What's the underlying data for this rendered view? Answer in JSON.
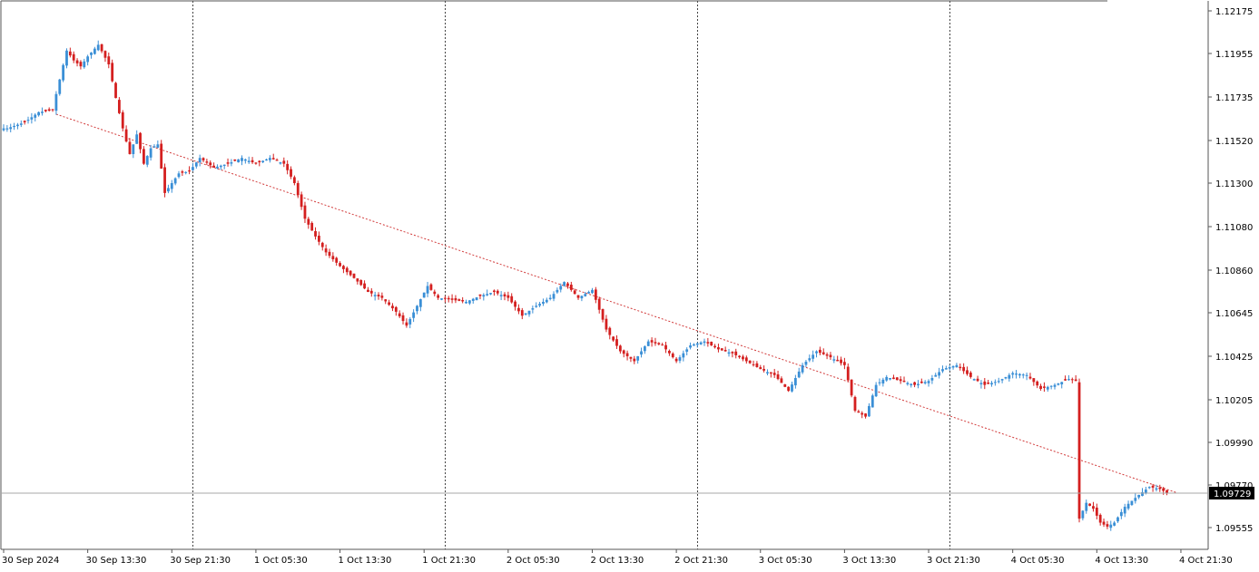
{
  "chart_data": {
    "type": "candlestick",
    "y_axis": {
      "ticks": [
        1.12175,
        1.11955,
        1.11735,
        1.1152,
        1.113,
        1.1108,
        1.1086,
        1.10645,
        1.10425,
        1.10205,
        1.0999,
        1.0977,
        1.09555
      ],
      "tick_labels": [
        "1.12175",
        "1.11955",
        "1.11735",
        "1.11520",
        "1.11300",
        "1.11080",
        "1.10860",
        "1.10645",
        "1.10425",
        "1.10205",
        "1.09990",
        "1.09770",
        "1.09555"
      ],
      "range": [
        1.0951,
        1.1222
      ]
    },
    "x_axis": {
      "labels": [
        "30 Sep 2024",
        "30 Sep 13:30",
        "30 Sep 21:30",
        "1 Oct 05:30",
        "1 Oct 13:30",
        "1 Oct 21:30",
        "2 Oct 05:30",
        "2 Oct 13:30",
        "2 Oct 21:30",
        "3 Oct 05:30",
        "3 Oct 13:30",
        "3 Oct 21:30",
        "4 Oct 05:30",
        "4 Oct 13:30",
        "4 Oct 21:30"
      ],
      "bar_index": [
        0,
        24,
        48,
        72,
        96,
        120,
        144,
        168,
        192,
        216,
        240,
        264,
        288,
        312,
        336
      ],
      "period_separators_at_bar": [
        54,
        126,
        198,
        270
      ]
    },
    "current_price": {
      "value": 1.09729,
      "label": "1.09729"
    },
    "trendline": {
      "from_bar": 15,
      "from_price": 1.1165,
      "to_bar": 335,
      "to_price": 1.0973
    },
    "colors": {
      "bull": "#3a8fd6",
      "bear": "#d41f1f",
      "grid": "#444444",
      "price_line": "#a7a7a7",
      "trendline": "#d23c3c"
    },
    "grid": true,
    "anchors": [
      {
        "bar": 1,
        "close": 1.1158
      },
      {
        "bar": 6,
        "close": 1.1161
      },
      {
        "bar": 10,
        "close": 1.1166
      },
      {
        "bar": 14,
        "close": 1.1167
      },
      {
        "bar": 15,
        "close": 1.1175
      },
      {
        "bar": 18,
        "close": 1.1197
      },
      {
        "bar": 20,
        "close": 1.1192
      },
      {
        "bar": 22,
        "close": 1.1189
      },
      {
        "bar": 24,
        "close": 1.1194
      },
      {
        "bar": 27,
        "close": 1.12
      },
      {
        "bar": 30,
        "close": 1.119
      },
      {
        "bar": 32,
        "close": 1.1173
      },
      {
        "bar": 34,
        "close": 1.1158
      },
      {
        "bar": 36,
        "close": 1.1145
      },
      {
        "bar": 38,
        "close": 1.1155
      },
      {
        "bar": 40,
        "close": 1.114
      },
      {
        "bar": 42,
        "close": 1.1148
      },
      {
        "bar": 44,
        "close": 1.115
      },
      {
        "bar": 46,
        "close": 1.1125
      },
      {
        "bar": 48,
        "close": 1.113
      },
      {
        "bar": 50,
        "close": 1.1135
      },
      {
        "bar": 53,
        "close": 1.1136
      },
      {
        "bar": 56,
        "close": 1.1143
      },
      {
        "bar": 60,
        "close": 1.1138
      },
      {
        "bar": 64,
        "close": 1.114
      },
      {
        "bar": 68,
        "close": 1.1143
      },
      {
        "bar": 72,
        "close": 1.114
      },
      {
        "bar": 76,
        "close": 1.1143
      },
      {
        "bar": 80,
        "close": 1.114
      },
      {
        "bar": 83,
        "close": 1.113
      },
      {
        "bar": 86,
        "close": 1.1112
      },
      {
        "bar": 89,
        "close": 1.1103
      },
      {
        "bar": 92,
        "close": 1.1095
      },
      {
        "bar": 96,
        "close": 1.1088
      },
      {
        "bar": 100,
        "close": 1.1082
      },
      {
        "bar": 104,
        "close": 1.1075
      },
      {
        "bar": 108,
        "close": 1.1072
      },
      {
        "bar": 112,
        "close": 1.1065
      },
      {
        "bar": 115,
        "close": 1.1058
      },
      {
        "bar": 118,
        "close": 1.1068
      },
      {
        "bar": 121,
        "close": 1.1078
      },
      {
        "bar": 124,
        "close": 1.1072
      },
      {
        "bar": 128,
        "close": 1.1071
      },
      {
        "bar": 132,
        "close": 1.107
      },
      {
        "bar": 136,
        "close": 1.1073
      },
      {
        "bar": 140,
        "close": 1.1075
      },
      {
        "bar": 144,
        "close": 1.1072
      },
      {
        "bar": 148,
        "close": 1.1063
      },
      {
        "bar": 152,
        "close": 1.1068
      },
      {
        "bar": 156,
        "close": 1.1072
      },
      {
        "bar": 160,
        "close": 1.108
      },
      {
        "bar": 164,
        "close": 1.1072
      },
      {
        "bar": 168,
        "close": 1.1076
      },
      {
        "bar": 172,
        "close": 1.1056
      },
      {
        "bar": 176,
        "close": 1.1045
      },
      {
        "bar": 180,
        "close": 1.104
      },
      {
        "bar": 184,
        "close": 1.105
      },
      {
        "bar": 188,
        "close": 1.1048
      },
      {
        "bar": 192,
        "close": 1.104
      },
      {
        "bar": 196,
        "close": 1.1048
      },
      {
        "bar": 200,
        "close": 1.105
      },
      {
        "bar": 204,
        "close": 1.1046
      },
      {
        "bar": 208,
        "close": 1.1044
      },
      {
        "bar": 212,
        "close": 1.104
      },
      {
        "bar": 216,
        "close": 1.1036
      },
      {
        "bar": 220,
        "close": 1.1033
      },
      {
        "bar": 224,
        "close": 1.1025
      },
      {
        "bar": 228,
        "close": 1.1038
      },
      {
        "bar": 232,
        "close": 1.1045
      },
      {
        "bar": 236,
        "close": 1.1042
      },
      {
        "bar": 240,
        "close": 1.1038
      },
      {
        "bar": 243,
        "close": 1.1015
      },
      {
        "bar": 246,
        "close": 1.1012
      },
      {
        "bar": 249,
        "close": 1.1028
      },
      {
        "bar": 252,
        "close": 1.1032
      },
      {
        "bar": 256,
        "close": 1.103
      },
      {
        "bar": 260,
        "close": 1.1028
      },
      {
        "bar": 264,
        "close": 1.103
      },
      {
        "bar": 268,
        "close": 1.1036
      },
      {
        "bar": 272,
        "close": 1.1038
      },
      {
        "bar": 276,
        "close": 1.1032
      },
      {
        "bar": 280,
        "close": 1.1028
      },
      {
        "bar": 284,
        "close": 1.103
      },
      {
        "bar": 288,
        "close": 1.1034
      },
      {
        "bar": 292,
        "close": 1.1033
      },
      {
        "bar": 296,
        "close": 1.1026
      },
      {
        "bar": 300,
        "close": 1.1028
      },
      {
        "bar": 304,
        "close": 1.1031
      },
      {
        "bar": 306,
        "close": 1.103
      },
      {
        "bar": 307,
        "close": 1.096
      },
      {
        "bar": 309,
        "close": 1.0968
      },
      {
        "bar": 311,
        "close": 1.0965
      },
      {
        "bar": 313,
        "close": 1.0958
      },
      {
        "bar": 315,
        "close": 1.0956
      },
      {
        "bar": 317,
        "close": 1.0958
      },
      {
        "bar": 320,
        "close": 1.0966
      },
      {
        "bar": 324,
        "close": 1.0972
      },
      {
        "bar": 327,
        "close": 1.0976
      },
      {
        "bar": 330,
        "close": 1.0975
      },
      {
        "bar": 332,
        "close": 1.0973
      }
    ]
  }
}
